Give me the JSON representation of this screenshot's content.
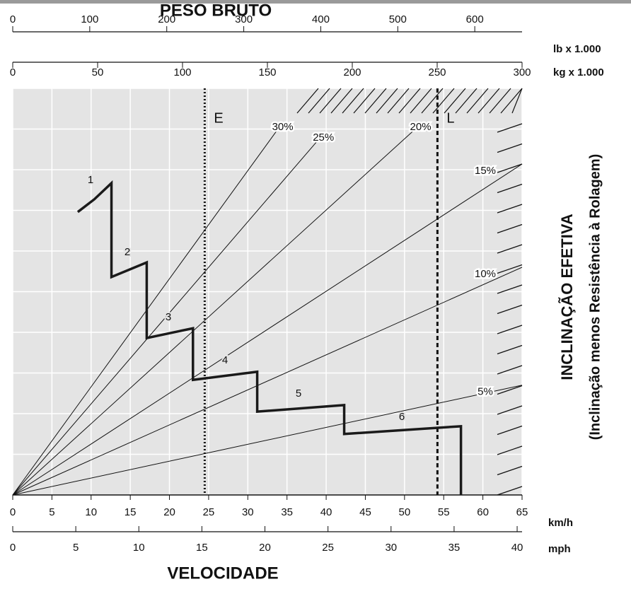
{
  "chart_data": {
    "type": "line",
    "title": "PESO BRUTO",
    "x_label": "VELOCIDADE",
    "y_label": "INCLINAÇÃO EFETIVA",
    "y_label_note": "(Inclinação menos Resistência à Rolagem)",
    "top_axes": [
      {
        "unit": "lb x 1.000",
        "xlim": [
          0,
          661.4
        ],
        "xticks": [
          0,
          100,
          200,
          300,
          400,
          500,
          600
        ]
      },
      {
        "unit": "kg x 1.000",
        "xlim": [
          0,
          300
        ],
        "xticks": [
          0,
          50,
          100,
          150,
          200,
          250,
          300
        ]
      }
    ],
    "xlim": [
      0,
      65
    ],
    "xticks": [
      0,
      5,
      10,
      15,
      20,
      25,
      30,
      35,
      40,
      45,
      50,
      55,
      60,
      65
    ],
    "x_unit": "km/h",
    "x2lim": [
      0,
      40.39
    ],
    "x2ticks": [
      0,
      5,
      10,
      15,
      20,
      25,
      30,
      35,
      40
    ],
    "x2_unit": "mph",
    "ylim": [
      0,
      100
    ],
    "yticks": [
      0,
      10,
      20,
      30,
      40,
      50,
      60,
      70,
      80,
      90,
      100
    ],
    "grid": true,
    "series": [
      {
        "color": "#1a1a1a",
        "x": [
          8.3,
          10.4,
          12.6,
          12.6,
          17.1,
          17.1,
          23.0,
          23.0,
          31.2,
          31.2,
          42.3,
          42.3,
          57.2,
          57.2
        ],
        "values": [
          69.6,
          72.7,
          76.7,
          53.6,
          57.2,
          38.6,
          41.0,
          28.3,
          30.3,
          20.5,
          22.1,
          15.0,
          16.9,
          0
        ]
      }
    ],
    "gears": [
      "1",
      "2",
      "3",
      "4",
      "5",
      "6"
    ],
    "grade_lines": [
      {
        "label": "30%",
        "value": 30,
        "x_end": 34.0,
        "y_end": 90.4
      },
      {
        "label": "25%",
        "value": 25,
        "x_end": 39.2,
        "y_end": 87.8
      },
      {
        "label": "20%",
        "value": 20,
        "x_end": 51.6,
        "y_end": 90.4
      },
      {
        "label": "15%",
        "value": 15,
        "x_end": 65,
        "y_end": 81.4
      },
      {
        "label": "10%",
        "value": 10,
        "x_end": 65,
        "y_end": 56
      },
      {
        "label": "5%",
        "value": 5,
        "x_end": 65,
        "y_end": 27
      }
    ],
    "markers": [
      {
        "label": "E",
        "x": 24.5,
        "style": "dotted"
      },
      {
        "label": "L",
        "x": 54.2,
        "style": "dashed"
      }
    ]
  }
}
